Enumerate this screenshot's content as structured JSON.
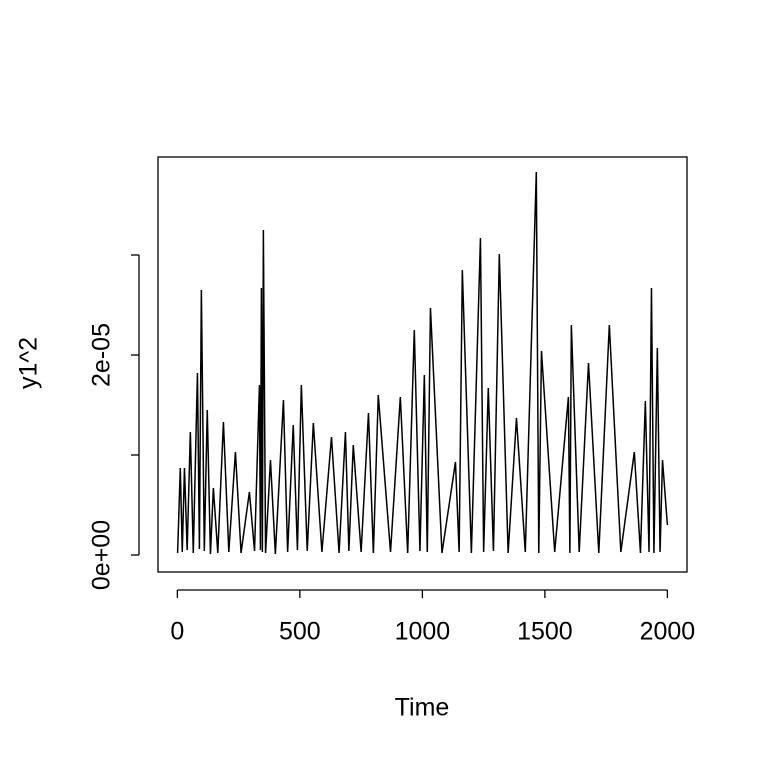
{
  "chart_data": {
    "type": "line",
    "xlabel": "Time",
    "ylabel": "y1^2",
    "color": "#000000",
    "x": [
      1,
      12,
      20,
      29,
      40,
      53,
      65,
      82,
      90,
      98,
      110,
      122,
      135,
      147,
      165,
      188,
      210,
      237,
      260,
      294,
      315,
      335,
      339,
      343,
      347,
      351,
      360,
      380,
      400,
      433,
      450,
      473,
      490,
      506,
      530,
      555,
      590,
      629,
      660,
      686,
      700,
      718,
      750,
      780,
      800,
      820,
      870,
      910,
      940,
      967,
      990,
      1008,
      1020,
      1033,
      1080,
      1135,
      1150,
      1163,
      1200,
      1237,
      1250,
      1269,
      1290,
      1314,
      1350,
      1384,
      1420,
      1465,
      1475,
      1486,
      1540,
      1596,
      1602,
      1608,
      1640,
      1678,
      1720,
      1763,
      1810,
      1865,
      1890,
      1910,
      1925,
      1935,
      1945,
      1959,
      1970,
      1980,
      2000
    ],
    "values": [
      2e-07,
      8.7e-06,
      3e-07,
      8.7e-06,
      5e-07,
      1.23e-05,
      2e-07,
      1.82e-05,
      6e-07,
      2.65e-05,
      4e-07,
      1.45e-05,
      1e-07,
      6.7e-06,
      2e-07,
      1.33e-05,
      3e-07,
      1.03e-05,
      2e-07,
      6.3e-06,
      4e-07,
      1.7e-05,
      5e-07,
      2.67e-05,
      3e-07,
      3.25e-05,
      2e-07,
      9.5e-06,
      1e-07,
      1.55e-05,
      3e-07,
      1.3e-05,
      5e-07,
      1.7e-05,
      4e-07,
      1.32e-05,
      3e-07,
      1.18e-05,
      2e-07,
      1.23e-05,
      4e-07,
      1.1e-05,
      3e-07,
      1.42e-05,
      2e-07,
      1.6e-05,
      3e-07,
      1.58e-05,
      2e-07,
      2.25e-05,
      4e-07,
      1.8e-05,
      3e-07,
      2.47e-05,
      2e-07,
      9.3e-06,
      3e-07,
      2.85e-05,
      2e-07,
      3.17e-05,
      3e-07,
      1.67e-05,
      4e-07,
      3.01e-05,
      2e-07,
      1.37e-05,
      3e-07,
      3.83e-05,
      2e-07,
      2.04e-05,
      3e-07,
      1.58e-05,
      2e-07,
      2.3e-05,
      3e-07,
      1.92e-05,
      2e-07,
      2.3e-05,
      3e-07,
      1.03e-05,
      2e-07,
      1.54e-05,
      3e-07,
      2.67e-05,
      2e-07,
      2.07e-05,
      3e-07,
      9.5e-06,
      3e-06
    ],
    "xlim": [
      -79,
      2080
    ],
    "xticks": [
      0,
      500,
      1000,
      1500,
      2000
    ],
    "ylim": [
      -1.7e-06,
      3.98e-05
    ],
    "yticks": [
      {
        "value": 0,
        "label": "0e+00"
      },
      {
        "value": 1e-05,
        "label": null
      },
      {
        "value": 2e-05,
        "label": "2e-05"
      },
      {
        "value": 3e-05,
        "label": null
      }
    ]
  }
}
